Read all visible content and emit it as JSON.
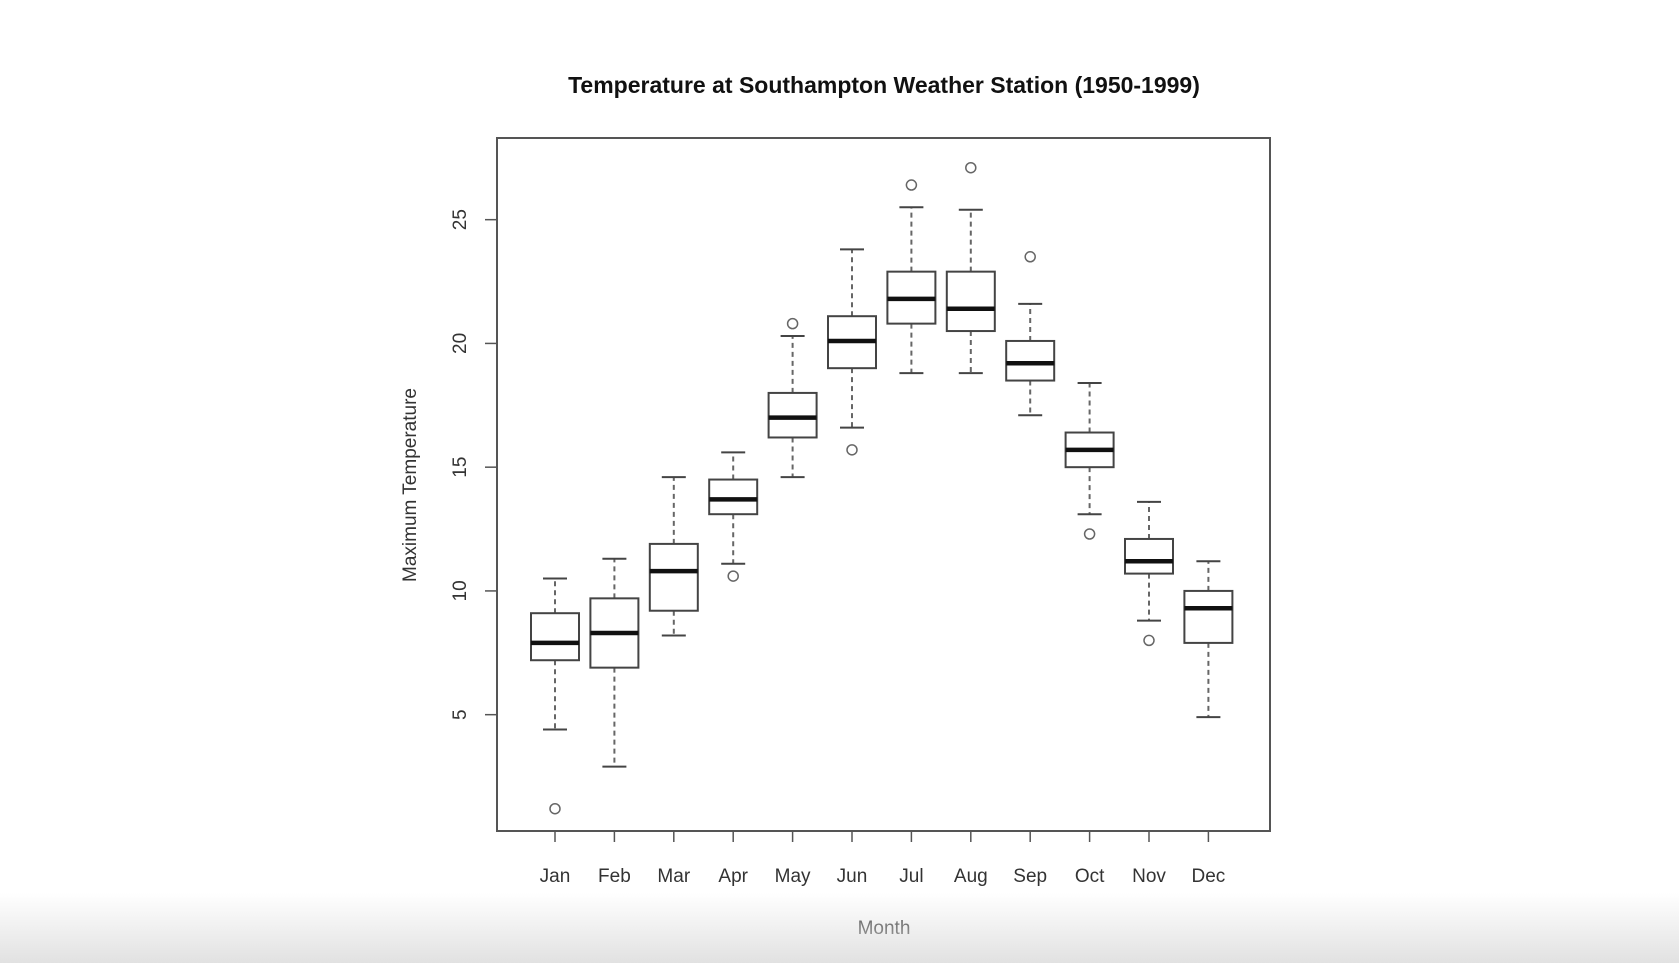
{
  "chart_data": {
    "type": "boxplot",
    "title": "Temperature at Southampton Weather Station (1950-1999)",
    "xlabel": "Month",
    "ylabel": "Maximum Temperature",
    "ylim": [
      0.3,
      28.3
    ],
    "yticks": [
      5,
      10,
      15,
      20,
      25
    ],
    "grid": false,
    "legend": "none",
    "categories": [
      "Jan",
      "Feb",
      "Mar",
      "Apr",
      "May",
      "Jun",
      "Jul",
      "Aug",
      "Sep",
      "Oct",
      "Nov",
      "Dec"
    ],
    "boxes": [
      {
        "month": "Jan",
        "whisker_low": 4.4,
        "q1": 7.2,
        "median": 7.9,
        "q3": 9.1,
        "whisker_high": 10.5,
        "outliers": [
          1.2
        ]
      },
      {
        "month": "Feb",
        "whisker_low": 2.9,
        "q1": 6.9,
        "median": 8.3,
        "q3": 9.7,
        "whisker_high": 11.3,
        "outliers": []
      },
      {
        "month": "Mar",
        "whisker_low": 8.2,
        "q1": 9.2,
        "median": 10.8,
        "q3": 11.9,
        "whisker_high": 14.6,
        "outliers": []
      },
      {
        "month": "Apr",
        "whisker_low": 11.1,
        "q1": 13.1,
        "median": 13.7,
        "q3": 14.5,
        "whisker_high": 15.6,
        "outliers": [
          10.6
        ]
      },
      {
        "month": "May",
        "whisker_low": 14.6,
        "q1": 16.2,
        "median": 17.0,
        "q3": 18.0,
        "whisker_high": 20.3,
        "outliers": [
          20.8
        ]
      },
      {
        "month": "Jun",
        "whisker_low": 16.6,
        "q1": 19.0,
        "median": 20.1,
        "q3": 21.1,
        "whisker_high": 23.8,
        "outliers": [
          15.7
        ]
      },
      {
        "month": "Jul",
        "whisker_low": 18.8,
        "q1": 20.8,
        "median": 21.8,
        "q3": 22.9,
        "whisker_high": 25.5,
        "outliers": [
          26.4
        ]
      },
      {
        "month": "Aug",
        "whisker_low": 18.8,
        "q1": 20.5,
        "median": 21.4,
        "q3": 22.9,
        "whisker_high": 25.4,
        "outliers": [
          27.1
        ]
      },
      {
        "month": "Sep",
        "whisker_low": 17.1,
        "q1": 18.5,
        "median": 19.2,
        "q3": 20.1,
        "whisker_high": 21.6,
        "outliers": [
          23.5
        ]
      },
      {
        "month": "Oct",
        "whisker_low": 13.1,
        "q1": 15.0,
        "median": 15.7,
        "q3": 16.4,
        "whisker_high": 18.4,
        "outliers": [
          12.3
        ]
      },
      {
        "month": "Nov",
        "whisker_low": 8.8,
        "q1": 10.7,
        "median": 11.2,
        "q3": 12.1,
        "whisker_high": 13.6,
        "outliers": [
          8.0
        ]
      },
      {
        "month": "Dec",
        "whisker_low": 4.9,
        "q1": 7.9,
        "median": 9.3,
        "q3": 10.0,
        "whisker_high": 11.2,
        "outliers": []
      }
    ]
  },
  "colors": {
    "background": "#ffffff",
    "frame": "#555555",
    "box": "#444444",
    "median": "#111111",
    "whisker": "#666666",
    "outlier": "#666666",
    "text": "#333333"
  }
}
